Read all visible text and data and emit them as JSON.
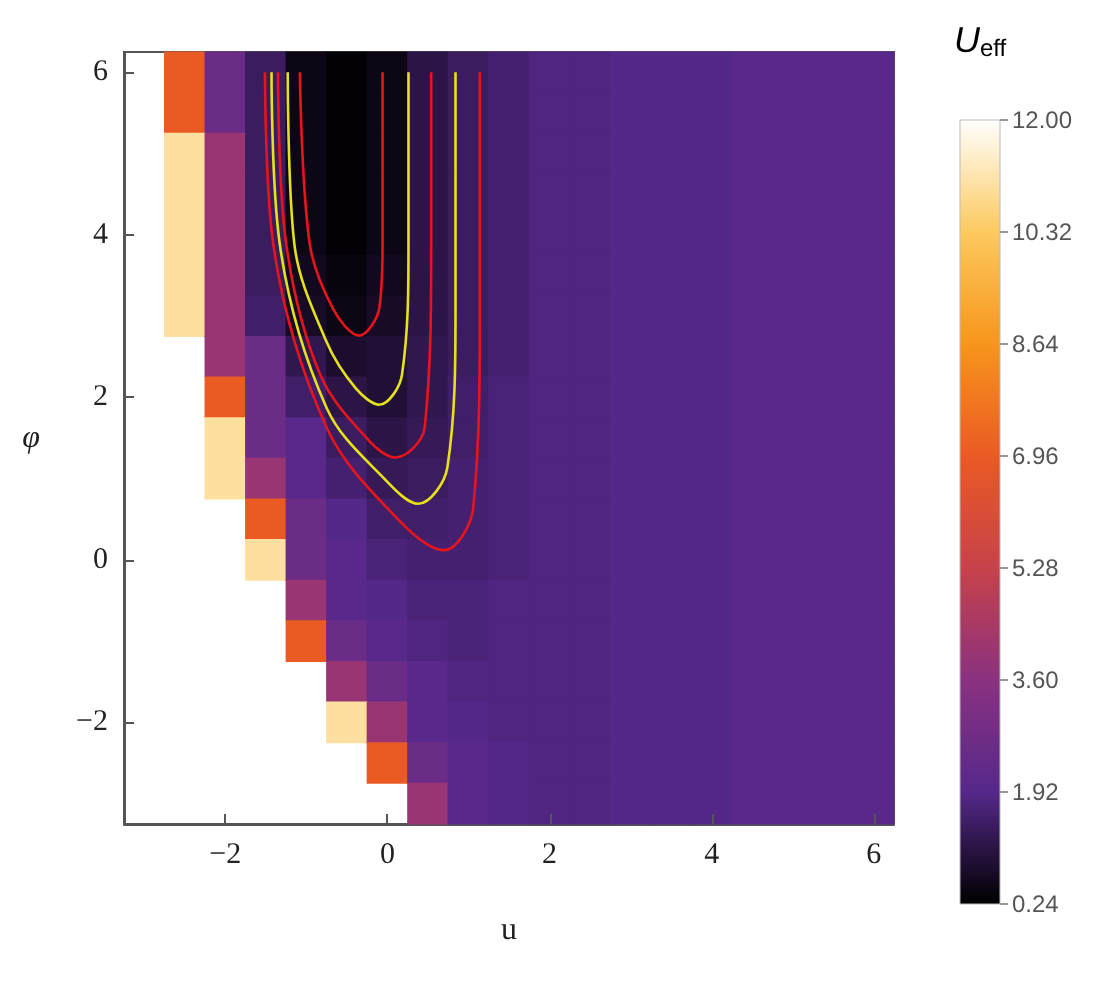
{
  "chart_data": [
    {
      "type": "heatmap",
      "xlabel": "u",
      "ylabel": "φ",
      "clabel": "U$_{eff}$",
      "categories": [
        null,
        null,
        "−2",
        null,
        null,
        null,
        "0",
        null,
        null,
        null,
        "2",
        null,
        null,
        null,
        "4",
        null,
        null,
        null,
        "6"
      ],
      "y_categories": [
        "6",
        null,
        null,
        null,
        "4",
        null,
        null,
        null,
        "2",
        null,
        null,
        null,
        "0",
        null,
        null,
        null,
        "−2",
        null,
        null
      ],
      "cells": [
        [
          null,
          7,
          2.6,
          1.4,
          0.5,
          0.3,
          0.5,
          1.1,
          1.4,
          1.6,
          1.8,
          1.8,
          1.9,
          1.9,
          1.9,
          2.0,
          2.0,
          2.0,
          2.0
        ],
        [
          null,
          7,
          2.6,
          1.4,
          0.5,
          0.3,
          0.5,
          1.1,
          1.4,
          1.6,
          1.8,
          1.8,
          1.9,
          1.9,
          1.9,
          2.0,
          2.0,
          2.0,
          2.0
        ],
        [
          null,
          11,
          4,
          1.4,
          0.5,
          0.3,
          0.5,
          1.1,
          1.4,
          1.6,
          1.8,
          1.8,
          1.9,
          1.9,
          1.9,
          2.0,
          2.0,
          2.0,
          2.0
        ],
        [
          null,
          11,
          4,
          1.4,
          0.5,
          0.3,
          0.5,
          1.1,
          1.4,
          1.6,
          1.8,
          1.8,
          1.9,
          1.9,
          1.9,
          2.0,
          2.0,
          2.0,
          2.0
        ],
        [
          null,
          11,
          4,
          1.4,
          0.5,
          0.3,
          0.5,
          1.1,
          1.4,
          1.6,
          1.8,
          1.8,
          1.9,
          1.9,
          1.9,
          2.0,
          2.0,
          2.0,
          2.0
        ],
        [
          null,
          11,
          4,
          1.4,
          0.6,
          0.4,
          0.6,
          1.1,
          1.4,
          1.6,
          1.8,
          1.8,
          1.9,
          1.9,
          1.9,
          2.0,
          2.0,
          2.0,
          2.0
        ],
        [
          null,
          11,
          4,
          1.5,
          0.7,
          0.5,
          0.7,
          1.1,
          1.4,
          1.6,
          1.8,
          1.8,
          1.9,
          1.9,
          1.9,
          2.0,
          2.0,
          2.0,
          2.0
        ],
        [
          null,
          null,
          4,
          2.6,
          1.2,
          0.8,
          0.9,
          1.2,
          1.4,
          1.6,
          1.8,
          1.8,
          1.9,
          1.9,
          1.9,
          2.0,
          2.0,
          2.0,
          2.0
        ],
        [
          null,
          null,
          7,
          2.6,
          1.5,
          1.1,
          0.9,
          1.2,
          1.5,
          1.7,
          1.8,
          1.8,
          1.9,
          1.9,
          1.9,
          2.0,
          2.0,
          2.0,
          2.0
        ],
        [
          null,
          null,
          11,
          2.6,
          2.0,
          1.4,
          1.1,
          1.3,
          1.5,
          1.7,
          1.8,
          1.8,
          1.9,
          1.9,
          1.9,
          2.0,
          2.0,
          2.0,
          2.0
        ],
        [
          null,
          null,
          11,
          4,
          2.0,
          1.6,
          1.3,
          1.4,
          1.6,
          1.7,
          1.8,
          1.8,
          1.9,
          1.9,
          1.9,
          2.0,
          2.0,
          2.0,
          2.0
        ],
        [
          null,
          null,
          null,
          7,
          2.6,
          1.9,
          1.5,
          1.5,
          1.6,
          1.7,
          1.8,
          1.8,
          1.9,
          1.9,
          1.9,
          2.0,
          2.0,
          2.0,
          2.0
        ],
        [
          null,
          null,
          null,
          11,
          2.6,
          2.0,
          1.7,
          1.6,
          1.6,
          1.7,
          1.8,
          1.8,
          1.9,
          1.9,
          1.9,
          2.0,
          2.0,
          2.0,
          2.0
        ],
        [
          null,
          null,
          null,
          null,
          4,
          2.0,
          1.9,
          1.7,
          1.7,
          1.8,
          1.8,
          1.8,
          1.9,
          1.9,
          1.9,
          2.0,
          2.0,
          2.0,
          2.0
        ],
        [
          null,
          null,
          null,
          null,
          7,
          2.6,
          2.0,
          1.8,
          1.7,
          1.8,
          1.8,
          1.8,
          1.9,
          1.9,
          1.9,
          2.0,
          2.0,
          2.0,
          2.0
        ],
        [
          null,
          null,
          null,
          null,
          null,
          4,
          2.6,
          2.0,
          1.8,
          1.8,
          1.8,
          1.8,
          1.9,
          1.9,
          1.9,
          2.0,
          2.0,
          2.0,
          2.0
        ],
        [
          null,
          null,
          null,
          null,
          null,
          11,
          4,
          2.0,
          1.9,
          1.8,
          1.8,
          1.8,
          1.9,
          1.9,
          1.9,
          2.0,
          2.0,
          2.0,
          2.0
        ],
        [
          null,
          null,
          null,
          null,
          null,
          null,
          7,
          2.6,
          2.0,
          1.9,
          1.8,
          1.8,
          1.9,
          1.9,
          1.9,
          2.0,
          2.0,
          2.0,
          2.0
        ],
        [
          null,
          null,
          null,
          null,
          null,
          null,
          null,
          4,
          2.0,
          1.9,
          1.8,
          1.8,
          1.9,
          1.9,
          1.9,
          2.0,
          2.0,
          2.0,
          2.0
        ]
      ],
      "clim": [
        0.24,
        12
      ],
      "cticks": [
        0.24,
        1.92,
        {
          "value": 3.6,
          "label": "3.60"
        },
        5.28,
        6.96,
        8.64,
        10.32,
        {
          "value": 12,
          "label": "12.00"
        }
      ]
    },
    {
      "type": "line",
      "xlim": [
        -3.25,
        6.25
      ],
      "ylim": [
        -3.25,
        6.25
      ],
      "xticks": [
        -2,
        0,
        2,
        4,
        6
      ],
      "yticks": [
        -2,
        0,
        2,
        4,
        6
      ],
      "tick_labels": false,
      "marker": "none",
      "series": [
        {
          "type": "line",
          "color": "#e8141c",
          "x": [
            -1.08,
            -0.96,
            -0.67,
            -0.35,
            -0.1,
            -0.06,
            -0.06
          ],
          "values": [
            6,
            3.9,
            3.09,
            2.76,
            3.1,
            3.9,
            6
          ]
        },
        {
          "type": "line",
          "color": "#e6e21a",
          "x": [
            -1.23,
            -1.15,
            -0.75,
            -0.39,
            -0.1,
            0.18,
            0.26,
            0.26
          ],
          "values": [
            6,
            3.9,
            2.68,
            2.11,
            1.91,
            2.28,
            3.9,
            6
          ]
        },
        {
          "type": "line",
          "color": "#e8141c",
          "x": [
            -1.35,
            -1.25,
            -0.83,
            -0.22,
            0.1,
            0.46,
            0.54,
            0.54
          ],
          "values": [
            6,
            3.9,
            2.28,
            1.46,
            1.26,
            1.63,
            3.9,
            6
          ]
        },
        {
          "type": "line",
          "color": "#e6e21a",
          "x": [
            -1.43,
            -1.33,
            -0.75,
            -0.02,
            0.38,
            0.74,
            0.84,
            0.84
          ],
          "values": [
            6,
            3.9,
            1.87,
            0.98,
            0.69,
            1.14,
            3.09,
            6
          ]
        },
        {
          "type": "line",
          "color": "#e8141c",
          "x": [
            -1.51,
            -1.41,
            -0.75,
            0.14,
            0.7,
            1.06,
            1.14,
            1.14
          ],
          "values": [
            6,
            3.9,
            1.63,
            0.49,
            0.12,
            0.65,
            3.09,
            6
          ]
        }
      ]
    }
  ]
}
